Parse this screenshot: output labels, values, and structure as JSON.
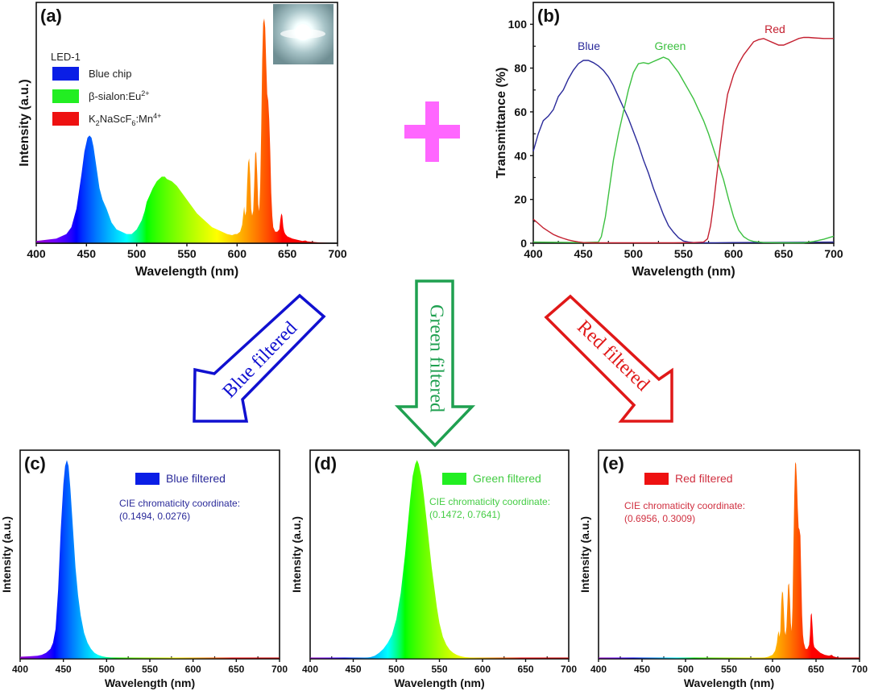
{
  "figure": {
    "plus_color": "#ff66ff",
    "arrows": [
      {
        "label": "Blue filtered",
        "color": "#1010d0"
      },
      {
        "label": "Green filtered",
        "color": "#1fa050"
      },
      {
        "label": "Red filtered",
        "color": "#e01818"
      }
    ]
  },
  "chart_data": [
    {
      "id": "a",
      "panel_label": "(a)",
      "type": "area",
      "title": "",
      "xlabel": "Wavelength (nm)",
      "ylabel": "Intensity (a.u.)",
      "xlim": [
        400,
        700
      ],
      "ylim": [
        0,
        1.05
      ],
      "xticks": [
        "400",
        "450",
        "500",
        "550",
        "600",
        "650",
        "700"
      ],
      "legend_title": "LED-1",
      "legend_position": "top-left",
      "legend": [
        {
          "label": "Blue chip",
          "color": "#0a1ee6"
        },
        {
          "label": "β-sialon:Eu",
          "sup": "2+",
          "color": "#22ee22"
        },
        {
          "label": "K",
          "sub1": "2",
          "mid": "NaScF",
          "sub2": "6",
          "tail": ":Mn",
          "sup": "4+",
          "color": "#ee1111"
        }
      ],
      "inset": "LED photo",
      "fill": "spectral",
      "series": [
        {
          "name": "LED-1 spectrum",
          "x": [
            400,
            420,
            430,
            435,
            440,
            445,
            448,
            451,
            453,
            455,
            457,
            460,
            463,
            466,
            470,
            475,
            480,
            485,
            490,
            495,
            500,
            505,
            508,
            510,
            513,
            516,
            520,
            525,
            528,
            530,
            535,
            540,
            545,
            550,
            555,
            560,
            565,
            570,
            575,
            580,
            585,
            590,
            595,
            598,
            600,
            603,
            605,
            606,
            607,
            608,
            609,
            610,
            611,
            612,
            613,
            614,
            615,
            616,
            617,
            618,
            619,
            620,
            621,
            622,
            623,
            624,
            625,
            626,
            627,
            628,
            629,
            630,
            631,
            632,
            633,
            634,
            635,
            636,
            638,
            640,
            642,
            643,
            644,
            645,
            646,
            647,
            648,
            650,
            655,
            660,
            665,
            668,
            670,
            680,
            700
          ],
          "y": [
            0.01,
            0.02,
            0.04,
            0.07,
            0.15,
            0.3,
            0.4,
            0.46,
            0.47,
            0.46,
            0.42,
            0.33,
            0.24,
            0.19,
            0.15,
            0.09,
            0.06,
            0.05,
            0.04,
            0.04,
            0.06,
            0.1,
            0.14,
            0.18,
            0.21,
            0.24,
            0.27,
            0.29,
            0.29,
            0.28,
            0.27,
            0.25,
            0.22,
            0.19,
            0.16,
            0.13,
            0.11,
            0.09,
            0.07,
            0.06,
            0.05,
            0.04,
            0.035,
            0.04,
            0.04,
            0.05,
            0.08,
            0.12,
            0.16,
            0.12,
            0.14,
            0.26,
            0.35,
            0.37,
            0.3,
            0.15,
            0.12,
            0.14,
            0.25,
            0.39,
            0.4,
            0.3,
            0.17,
            0.14,
            0.25,
            0.5,
            0.8,
            0.96,
            0.98,
            0.94,
            0.78,
            0.65,
            0.62,
            0.54,
            0.4,
            0.22,
            0.12,
            0.07,
            0.05,
            0.05,
            0.06,
            0.1,
            0.13,
            0.12,
            0.07,
            0.05,
            0.04,
            0.03,
            0.02,
            0.015,
            0.01,
            0.012,
            0.008,
            0.004,
            0.0
          ]
        }
      ]
    },
    {
      "id": "b",
      "panel_label": "(b)",
      "type": "line",
      "title": "",
      "xlabel": "Wavelength (nm)",
      "ylabel": "Transmittance (%)",
      "xlim": [
        400,
        700
      ],
      "ylim": [
        0,
        110
      ],
      "xticks": [
        "400",
        "450",
        "500",
        "550",
        "600",
        "650",
        "700"
      ],
      "yticks": [
        "0",
        "20",
        "40",
        "60",
        "80",
        "100"
      ],
      "series": [
        {
          "name": "Blue",
          "color": "#2a2a9a",
          "x": [
            400,
            405,
            410,
            415,
            420,
            425,
            430,
            435,
            440,
            445,
            450,
            455,
            460,
            465,
            470,
            475,
            480,
            485,
            490,
            495,
            500,
            505,
            510,
            515,
            520,
            525,
            530,
            535,
            540,
            545,
            550,
            555,
            560,
            570,
            580,
            600,
            650,
            700
          ],
          "y": [
            42,
            50,
            56,
            58,
            61,
            67,
            70,
            75,
            79,
            82,
            83.5,
            83.5,
            82.5,
            81,
            79,
            76,
            72,
            67,
            62,
            57,
            51,
            45,
            38,
            32,
            25,
            19,
            13,
            8,
            5,
            2.5,
            1,
            0.5,
            0.3,
            0.2,
            0.2,
            0.3,
            0.4,
            0.5
          ]
        },
        {
          "name": "Green",
          "color": "#3cc040",
          "x": [
            400,
            450,
            465,
            468,
            472,
            476,
            480,
            485,
            490,
            495,
            500,
            505,
            510,
            515,
            520,
            525,
            530,
            535,
            540,
            545,
            550,
            555,
            560,
            565,
            570,
            575,
            580,
            585,
            590,
            595,
            600,
            605,
            610,
            615,
            620,
            630,
            650,
            670,
            680,
            690,
            700
          ],
          "y": [
            0.5,
            0.3,
            0.5,
            3,
            12,
            25,
            38,
            50,
            60,
            70,
            78,
            82,
            82.5,
            82,
            83,
            84,
            85,
            84,
            81,
            78,
            74,
            70,
            66,
            61,
            56,
            50,
            43,
            36,
            29,
            20,
            12,
            6,
            3,
            1.5,
            0.8,
            0.3,
            0.2,
            0.2,
            0.8,
            1.8,
            3.2
          ]
        },
        {
          "name": "Red",
          "color": "#c42030",
          "x": [
            400,
            405,
            410,
            415,
            420,
            425,
            430,
            435,
            440,
            445,
            450,
            460,
            470,
            480,
            500,
            520,
            540,
            560,
            570,
            574,
            577,
            580,
            583,
            586,
            590,
            594,
            598,
            600,
            605,
            610,
            615,
            620,
            625,
            630,
            635,
            640,
            645,
            650,
            655,
            660,
            665,
            670,
            675,
            680,
            690,
            700
          ],
          "y": [
            11,
            9,
            7,
            5.5,
            4,
            3,
            2.2,
            1.5,
            1,
            0.6,
            0.3,
            0.2,
            0.2,
            0.2,
            0.2,
            0.2,
            0.2,
            0.3,
            0.5,
            2,
            8,
            18,
            30,
            42,
            56,
            68,
            74,
            77,
            82,
            86,
            89,
            92,
            93,
            93.5,
            92.5,
            91.5,
            90.5,
            90.5,
            91.5,
            92.5,
            93.5,
            94,
            94,
            93.8,
            93.5,
            93.5
          ]
        }
      ],
      "annotations": [
        {
          "text": "Blue",
          "color": "#2a2a9a"
        },
        {
          "text": "Green",
          "color": "#3cc040"
        },
        {
          "text": "Red",
          "color": "#c42030"
        }
      ]
    },
    {
      "id": "c",
      "panel_label": "(c)",
      "type": "area",
      "xlabel": "Wavelength (nm)",
      "ylabel": "Intensity (a.u.)",
      "xlim": [
        400,
        700
      ],
      "ylim": [
        0,
        1.05
      ],
      "xticks": [
        "400",
        "450",
        "500",
        "550",
        "600",
        "650",
        "700"
      ],
      "legend": [
        {
          "label": "Blue filtered",
          "color": "#0a1ee6"
        }
      ],
      "annotation": {
        "title": "CIE chromaticity coordinate:",
        "value": "(0.1494, 0.0276)",
        "color": "#2a2a9a"
      },
      "fill": "spectral",
      "series": [
        {
          "name": "Blue filtered",
          "x": [
            400,
            410,
            420,
            425,
            430,
            435,
            438,
            441,
            444,
            447,
            450,
            452,
            454,
            456,
            458,
            461,
            464,
            467,
            470,
            474,
            478,
            482,
            486,
            490,
            495,
            500,
            510,
            550,
            700
          ],
          "y": [
            0.01,
            0.012,
            0.015,
            0.02,
            0.03,
            0.05,
            0.08,
            0.15,
            0.35,
            0.65,
            0.88,
            0.97,
            1.0,
            0.97,
            0.86,
            0.66,
            0.46,
            0.32,
            0.22,
            0.13,
            0.08,
            0.05,
            0.03,
            0.02,
            0.012,
            0.008,
            0.004,
            0.002,
            0.0
          ]
        }
      ]
    },
    {
      "id": "d",
      "panel_label": "(d)",
      "type": "area",
      "xlabel": "Wavelength (nm)",
      "ylabel": "Intensity (a.u.)",
      "xlim": [
        400,
        700
      ],
      "ylim": [
        0,
        1.05
      ],
      "xticks": [
        "400",
        "450",
        "500",
        "550",
        "600",
        "650",
        "700"
      ],
      "legend": [
        {
          "label": "Green filtered",
          "color": "#22ee22"
        }
      ],
      "annotation": {
        "title": "CIE chromaticity coordinate:",
        "value": "(0.1472, 0.7641)",
        "color": "#44cc44"
      },
      "fill": "spectral",
      "series": [
        {
          "name": "Green filtered",
          "x": [
            400,
            460,
            470,
            475,
            480,
            485,
            490,
            495,
            500,
            505,
            510,
            513,
            516,
            519,
            522,
            524,
            526,
            529,
            532,
            535,
            538,
            541,
            544,
            547,
            550,
            554,
            558,
            562,
            566,
            570,
            575,
            580,
            590,
            600,
            700
          ],
          "y": [
            0.0,
            0.002,
            0.008,
            0.015,
            0.03,
            0.05,
            0.08,
            0.12,
            0.2,
            0.33,
            0.52,
            0.66,
            0.8,
            0.92,
            0.98,
            1.0,
            0.98,
            0.92,
            0.82,
            0.7,
            0.58,
            0.46,
            0.36,
            0.26,
            0.18,
            0.11,
            0.07,
            0.045,
            0.03,
            0.02,
            0.012,
            0.008,
            0.004,
            0.002,
            0.0
          ]
        }
      ]
    },
    {
      "id": "e",
      "panel_label": "(e)",
      "type": "area",
      "xlabel": "Wavelength (nm)",
      "ylabel": "Intensity (a.u.)",
      "xlim": [
        400,
        700
      ],
      "ylim": [
        0,
        1.05
      ],
      "xticks": [
        "400",
        "450",
        "500",
        "550",
        "600",
        "650",
        "700"
      ],
      "legend": [
        {
          "label": "Red filtered",
          "color": "#ee1111"
        }
      ],
      "annotation": {
        "title": "CIE chromaticity coordinate:",
        "value": "(0.6956, 0.3009)",
        "color": "#d03040"
      },
      "fill": "spectral",
      "series": [
        {
          "name": "Red filtered",
          "x": [
            400,
            580,
            590,
            595,
            600,
            603,
            605,
            606,
            607,
            608,
            609,
            610,
            611,
            612,
            613,
            614,
            615,
            616,
            617,
            618,
            619,
            620,
            621,
            622,
            623,
            624,
            625,
            626,
            627,
            628,
            629,
            630,
            631,
            632,
            633,
            634,
            635,
            636,
            638,
            640,
            642,
            643,
            644,
            645,
            646,
            647,
            648,
            650,
            655,
            660,
            665,
            668,
            670,
            675,
            680,
            700
          ],
          "y": [
            0.0,
            0.002,
            0.005,
            0.01,
            0.02,
            0.04,
            0.08,
            0.12,
            0.14,
            0.11,
            0.14,
            0.28,
            0.34,
            0.33,
            0.25,
            0.14,
            0.12,
            0.16,
            0.27,
            0.37,
            0.38,
            0.3,
            0.18,
            0.14,
            0.26,
            0.55,
            0.82,
            0.99,
            0.98,
            0.9,
            0.76,
            0.66,
            0.65,
            0.62,
            0.42,
            0.22,
            0.12,
            0.08,
            0.05,
            0.05,
            0.07,
            0.12,
            0.22,
            0.23,
            0.16,
            0.08,
            0.06,
            0.05,
            0.03,
            0.02,
            0.015,
            0.02,
            0.012,
            0.006,
            0.003,
            0.0
          ]
        }
      ]
    }
  ]
}
